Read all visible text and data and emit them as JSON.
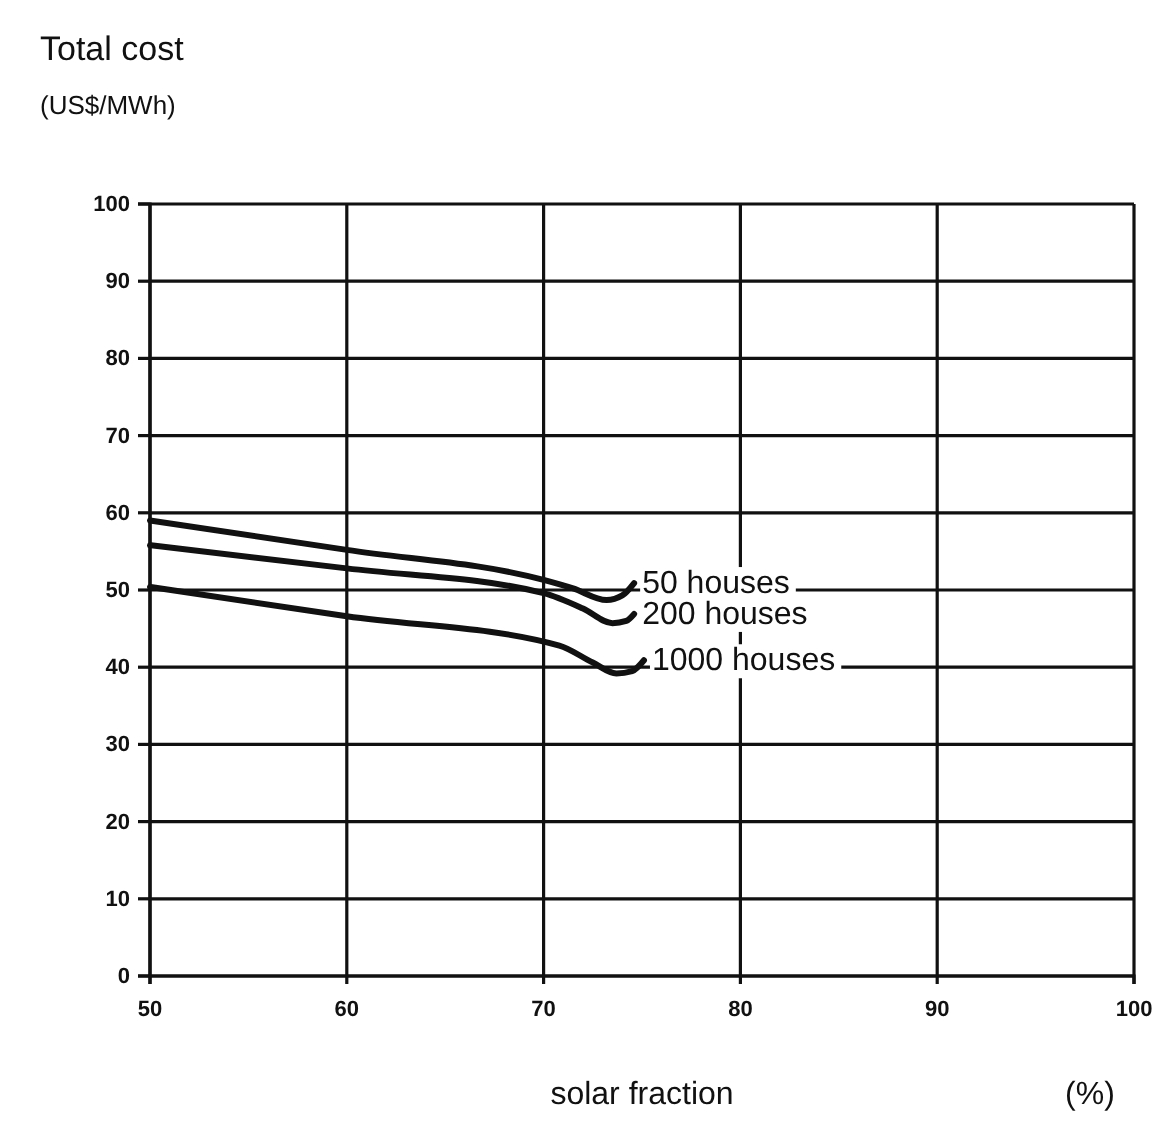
{
  "chart_data": {
    "type": "line",
    "title": "Total cost",
    "ylabel": "(US$/MWh)",
    "xlabel": "solar fraction",
    "annotations": [
      "(%)"
    ],
    "xlim": [
      50,
      100
    ],
    "xticks": [
      50,
      60,
      70,
      80,
      90,
      100
    ],
    "ylim": [
      0,
      100
    ],
    "yticks": [
      0,
      10,
      20,
      30,
      40,
      50,
      60,
      70,
      80,
      90,
      100
    ],
    "grid": true,
    "marker": "none",
    "line_style": "solid",
    "series": [
      {
        "name": "50 houses",
        "color": "#111111",
        "x": [
          50,
          60,
          70,
          71.5,
          73.2,
          74,
          74.6
        ],
        "values": [
          59,
          55.2,
          51.3,
          50.2,
          48.7,
          49.3,
          50.9
        ]
      },
      {
        "name": "200 houses",
        "color": "#111111",
        "x": [
          50,
          60,
          70,
          72,
          73.5,
          74.2,
          74.6
        ],
        "values": [
          55.8,
          52.8,
          49.6,
          47.6,
          45.7,
          46,
          46.9
        ]
      },
      {
        "name": "1000 houses",
        "color": "#111111",
        "x": [
          50,
          60,
          70.8,
          72.5,
          73.7,
          74.5,
          75.1
        ],
        "values": [
          50.4,
          46.6,
          42.8,
          40.6,
          39.2,
          39.5,
          40.9
        ]
      }
    ]
  }
}
